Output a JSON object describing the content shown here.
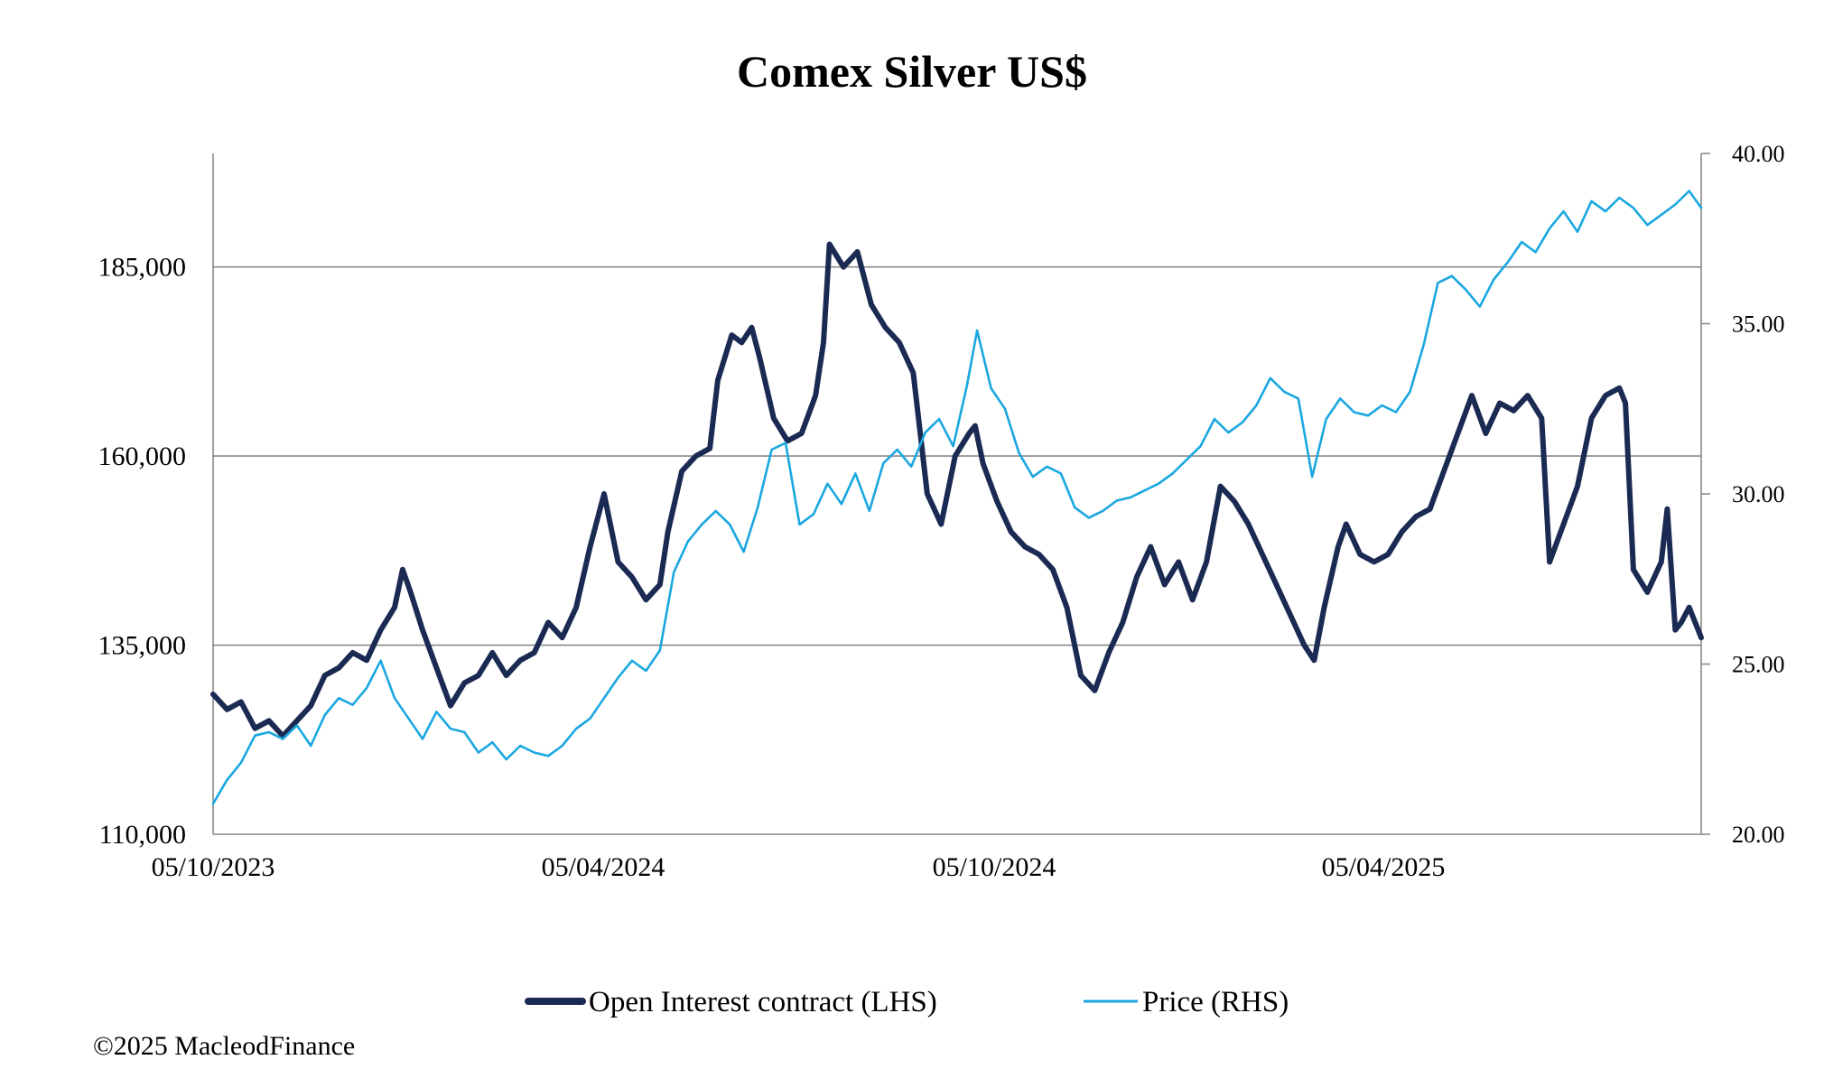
{
  "chart_data": {
    "type": "line",
    "title": "Comex Silver US$",
    "xlabel": "",
    "ylabel_left": "",
    "ylabel_right": "",
    "x_ticks": [
      "05/10/2023",
      "05/04/2024",
      "05/10/2024",
      "05/04/2025"
    ],
    "x_range": [
      "2023-10-05",
      "2025-10-20"
    ],
    "y_left_range": [
      110000,
      200000
    ],
    "y_left_ticks": [
      "110,000",
      "135,000",
      "160,000",
      "185,000"
    ],
    "y_left_tick_values": [
      110000,
      135000,
      160000,
      185000
    ],
    "y_right_range": [
      20,
      40
    ],
    "y_right_ticks": [
      "20.00",
      "25.00",
      "30.00",
      "35.00",
      "40.00"
    ],
    "y_right_tick_values": [
      20,
      25,
      30,
      35,
      40
    ],
    "grid": "horizontal",
    "legend_position": "bottom-center",
    "series": [
      {
        "name": "Open Interest contract (LHS)",
        "axis": "left",
        "color": "#1b2a52",
        "points": [
          [
            "2023-10-05",
            128500
          ],
          [
            "2023-10-12",
            126500
          ],
          [
            "2023-10-19",
            127500
          ],
          [
            "2023-10-26",
            124000
          ],
          [
            "2023-11-02",
            125000
          ],
          [
            "2023-11-09",
            123000
          ],
          [
            "2023-11-16",
            125000
          ],
          [
            "2023-11-23",
            127000
          ],
          [
            "2023-11-30",
            131000
          ],
          [
            "2023-12-07",
            132000
          ],
          [
            "2023-12-14",
            134000
          ],
          [
            "2023-12-21",
            133000
          ],
          [
            "2023-12-28",
            137000
          ],
          [
            "2024-01-04",
            140000
          ],
          [
            "2024-01-08",
            145000
          ],
          [
            "2024-01-12",
            142000
          ],
          [
            "2024-01-18",
            137000
          ],
          [
            "2024-01-25",
            132000
          ],
          [
            "2024-02-01",
            127000
          ],
          [
            "2024-02-08",
            130000
          ],
          [
            "2024-02-15",
            131000
          ],
          [
            "2024-02-22",
            134000
          ],
          [
            "2024-02-29",
            131000
          ],
          [
            "2024-03-07",
            133000
          ],
          [
            "2024-03-14",
            134000
          ],
          [
            "2024-03-21",
            138000
          ],
          [
            "2024-03-28",
            136000
          ],
          [
            "2024-04-04",
            140000
          ],
          [
            "2024-04-11",
            148000
          ],
          [
            "2024-04-18",
            155000
          ],
          [
            "2024-04-25",
            146000
          ],
          [
            "2024-05-02",
            144000
          ],
          [
            "2024-05-09",
            141000
          ],
          [
            "2024-05-16",
            143000
          ],
          [
            "2024-05-20",
            150000
          ],
          [
            "2024-05-27",
            158000
          ],
          [
            "2024-06-03",
            160000
          ],
          [
            "2024-06-10",
            161000
          ],
          [
            "2024-06-14",
            170000
          ],
          [
            "2024-06-21",
            176000
          ],
          [
            "2024-06-26",
            175000
          ],
          [
            "2024-07-01",
            177000
          ],
          [
            "2024-07-05",
            173000
          ],
          [
            "2024-07-12",
            165000
          ],
          [
            "2024-07-19",
            162000
          ],
          [
            "2024-07-26",
            163000
          ],
          [
            "2024-08-02",
            168000
          ],
          [
            "2024-08-06",
            175000
          ],
          [
            "2024-08-09",
            188000
          ],
          [
            "2024-08-16",
            185000
          ],
          [
            "2024-08-23",
            187000
          ],
          [
            "2024-08-30",
            180000
          ],
          [
            "2024-09-06",
            177000
          ],
          [
            "2024-09-13",
            175000
          ],
          [
            "2024-09-20",
            171000
          ],
          [
            "2024-09-27",
            155000
          ],
          [
            "2024-10-04",
            151000
          ],
          [
            "2024-10-11",
            160000
          ],
          [
            "2024-10-18",
            163000
          ],
          [
            "2024-10-21",
            164000
          ],
          [
            "2024-10-25",
            159000
          ],
          [
            "2024-11-01",
            154000
          ],
          [
            "2024-11-08",
            150000
          ],
          [
            "2024-11-15",
            148000
          ],
          [
            "2024-11-22",
            147000
          ],
          [
            "2024-11-29",
            145000
          ],
          [
            "2024-12-06",
            140000
          ],
          [
            "2024-12-13",
            131000
          ],
          [
            "2024-12-20",
            129000
          ],
          [
            "2024-12-27",
            134000
          ],
          [
            "2025-01-03",
            138000
          ],
          [
            "2025-01-10",
            144000
          ],
          [
            "2025-01-17",
            148000
          ],
          [
            "2025-01-24",
            143000
          ],
          [
            "2025-01-31",
            146000
          ],
          [
            "2025-02-07",
            141000
          ],
          [
            "2025-02-14",
            146000
          ],
          [
            "2025-02-21",
            156000
          ],
          [
            "2025-02-28",
            154000
          ],
          [
            "2025-03-07",
            151000
          ],
          [
            "2025-03-14",
            147000
          ],
          [
            "2025-03-21",
            143000
          ],
          [
            "2025-03-28",
            139000
          ],
          [
            "2025-04-04",
            135000
          ],
          [
            "2025-04-09",
            133000
          ],
          [
            "2025-04-14",
            140000
          ],
          [
            "2025-04-21",
            148000
          ],
          [
            "2025-04-25",
            151000
          ],
          [
            "2025-05-02",
            147000
          ],
          [
            "2025-05-09",
            146000
          ],
          [
            "2025-05-16",
            147000
          ],
          [
            "2025-05-23",
            150000
          ],
          [
            "2025-05-30",
            152000
          ],
          [
            "2025-06-06",
            153000
          ],
          [
            "2025-06-13",
            158000
          ],
          [
            "2025-06-20",
            163000
          ],
          [
            "2025-06-27",
            168000
          ],
          [
            "2025-07-04",
            163000
          ],
          [
            "2025-07-11",
            167000
          ],
          [
            "2025-07-18",
            166000
          ],
          [
            "2025-07-25",
            168000
          ],
          [
            "2025-08-01",
            165000
          ],
          [
            "2025-08-05",
            146000
          ],
          [
            "2025-08-12",
            151000
          ],
          [
            "2025-08-19",
            156000
          ],
          [
            "2025-08-26",
            165000
          ],
          [
            "2025-09-02",
            168000
          ],
          [
            "2025-09-09",
            169000
          ],
          [
            "2025-09-12",
            167000
          ],
          [
            "2025-09-16",
            145000
          ],
          [
            "2025-09-23",
            142000
          ],
          [
            "2025-09-30",
            146000
          ],
          [
            "2025-10-03",
            153000
          ],
          [
            "2025-10-07",
            137000
          ],
          [
            "2025-10-10",
            138000
          ],
          [
            "2025-10-14",
            140000
          ],
          [
            "2025-10-20",
            136000
          ]
        ]
      },
      {
        "name": "Price (RHS)",
        "axis": "right",
        "color": "#1aa7e0",
        "points": [
          [
            "2023-10-05",
            20.9
          ],
          [
            "2023-10-12",
            21.6
          ],
          [
            "2023-10-19",
            22.1
          ],
          [
            "2023-10-26",
            22.9
          ],
          [
            "2023-11-02",
            23.0
          ],
          [
            "2023-11-09",
            22.8
          ],
          [
            "2023-11-16",
            23.2
          ],
          [
            "2023-11-23",
            22.6
          ],
          [
            "2023-11-30",
            23.5
          ],
          [
            "2023-12-07",
            24.0
          ],
          [
            "2023-12-14",
            23.8
          ],
          [
            "2023-12-21",
            24.3
          ],
          [
            "2023-12-28",
            25.1
          ],
          [
            "2024-01-04",
            24.0
          ],
          [
            "2024-01-11",
            23.4
          ],
          [
            "2024-01-18",
            22.8
          ],
          [
            "2024-01-25",
            23.6
          ],
          [
            "2024-02-01",
            23.1
          ],
          [
            "2024-02-08",
            23.0
          ],
          [
            "2024-02-15",
            22.4
          ],
          [
            "2024-02-22",
            22.7
          ],
          [
            "2024-02-29",
            22.2
          ],
          [
            "2024-03-07",
            22.6
          ],
          [
            "2024-03-14",
            22.4
          ],
          [
            "2024-03-21",
            22.3
          ],
          [
            "2024-03-28",
            22.6
          ],
          [
            "2024-04-04",
            23.1
          ],
          [
            "2024-04-11",
            23.4
          ],
          [
            "2024-04-18",
            24.0
          ],
          [
            "2024-04-25",
            24.6
          ],
          [
            "2024-05-02",
            25.1
          ],
          [
            "2024-05-09",
            24.8
          ],
          [
            "2024-05-16",
            25.4
          ],
          [
            "2024-05-23",
            27.7
          ],
          [
            "2024-05-30",
            28.6
          ],
          [
            "2024-06-06",
            29.1
          ],
          [
            "2024-06-13",
            29.5
          ],
          [
            "2024-06-20",
            29.1
          ],
          [
            "2024-06-27",
            28.3
          ],
          [
            "2024-07-04",
            29.6
          ],
          [
            "2024-07-11",
            31.3
          ],
          [
            "2024-07-18",
            31.5
          ],
          [
            "2024-07-25",
            29.1
          ],
          [
            "2024-08-01",
            29.4
          ],
          [
            "2024-08-08",
            30.3
          ],
          [
            "2024-08-15",
            29.7
          ],
          [
            "2024-08-22",
            30.6
          ],
          [
            "2024-08-29",
            29.5
          ],
          [
            "2024-09-05",
            30.9
          ],
          [
            "2024-09-12",
            31.3
          ],
          [
            "2024-09-19",
            30.8
          ],
          [
            "2024-09-26",
            31.8
          ],
          [
            "2024-10-03",
            32.2
          ],
          [
            "2024-10-10",
            31.4
          ],
          [
            "2024-10-17",
            33.2
          ],
          [
            "2024-10-22",
            34.8
          ],
          [
            "2024-10-29",
            33.1
          ],
          [
            "2024-11-05",
            32.5
          ],
          [
            "2024-11-12",
            31.2
          ],
          [
            "2024-11-19",
            30.5
          ],
          [
            "2024-11-26",
            30.8
          ],
          [
            "2024-12-03",
            30.6
          ],
          [
            "2024-12-10",
            29.6
          ],
          [
            "2024-12-17",
            29.3
          ],
          [
            "2024-12-24",
            29.5
          ],
          [
            "2024-12-31",
            29.8
          ],
          [
            "2025-01-07",
            29.9
          ],
          [
            "2025-01-14",
            30.1
          ],
          [
            "2025-01-21",
            30.3
          ],
          [
            "2025-01-28",
            30.6
          ],
          [
            "2025-02-04",
            31.0
          ],
          [
            "2025-02-11",
            31.4
          ],
          [
            "2025-02-18",
            32.2
          ],
          [
            "2025-02-25",
            31.8
          ],
          [
            "2025-03-04",
            32.1
          ],
          [
            "2025-03-11",
            32.6
          ],
          [
            "2025-03-18",
            33.4
          ],
          [
            "2025-03-25",
            33.0
          ],
          [
            "2025-04-01",
            32.8
          ],
          [
            "2025-04-08",
            30.5
          ],
          [
            "2025-04-15",
            32.2
          ],
          [
            "2025-04-22",
            32.8
          ],
          [
            "2025-04-29",
            32.4
          ],
          [
            "2025-05-06",
            32.3
          ],
          [
            "2025-05-13",
            32.6
          ],
          [
            "2025-05-20",
            32.4
          ],
          [
            "2025-05-27",
            33.0
          ],
          [
            "2025-06-03",
            34.4
          ],
          [
            "2025-06-10",
            36.2
          ],
          [
            "2025-06-17",
            36.4
          ],
          [
            "2025-06-24",
            36.0
          ],
          [
            "2025-07-01",
            35.5
          ],
          [
            "2025-07-08",
            36.3
          ],
          [
            "2025-07-15",
            36.8
          ],
          [
            "2025-07-22",
            37.4
          ],
          [
            "2025-07-29",
            37.1
          ],
          [
            "2025-08-05",
            37.8
          ],
          [
            "2025-08-12",
            38.3
          ],
          [
            "2025-08-19",
            37.7
          ],
          [
            "2025-08-26",
            38.6
          ],
          [
            "2025-09-02",
            38.3
          ],
          [
            "2025-09-09",
            38.7
          ],
          [
            "2025-09-16",
            38.4
          ],
          [
            "2025-09-23",
            37.9
          ],
          [
            "2025-09-30",
            38.2
          ],
          [
            "2025-10-07",
            38.5
          ],
          [
            "2025-10-14",
            38.9
          ],
          [
            "2025-10-20",
            38.4
          ]
        ]
      }
    ]
  },
  "copyright": "©2025 MacleodFinance"
}
